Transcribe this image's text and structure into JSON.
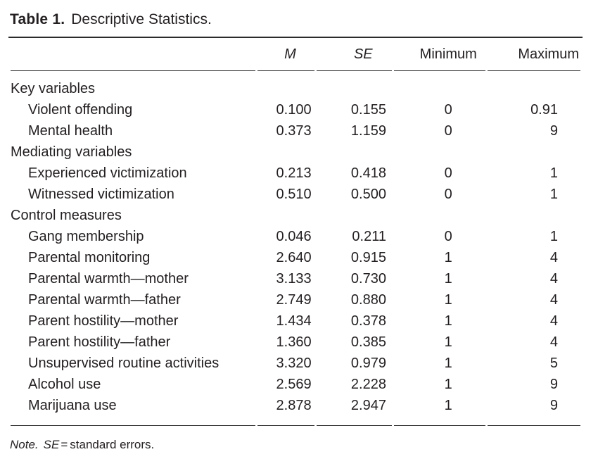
{
  "title": {
    "label": "Table 1.",
    "caption": "Descriptive Statistics."
  },
  "table": {
    "columns": {
      "m": "M",
      "se": "SE",
      "min": "Minimum",
      "max": "Maximum"
    },
    "rows": [
      {
        "type": "section",
        "label": "Key variables"
      },
      {
        "type": "item",
        "label": "Violent offending",
        "m": "0.100",
        "se": "0.155",
        "min": "0",
        "max": "0.91"
      },
      {
        "type": "item",
        "label": "Mental health",
        "m": "0.373",
        "se": "1.159",
        "min": "0",
        "max": "9"
      },
      {
        "type": "section",
        "label": "Mediating variables"
      },
      {
        "type": "item",
        "label": "Experienced victimization",
        "m": "0.213",
        "se": "0.418",
        "min": "0",
        "max": "1"
      },
      {
        "type": "item",
        "label": "Witnessed victimization",
        "m": "0.510",
        "se": "0.500",
        "min": "0",
        "max": "1"
      },
      {
        "type": "section",
        "label": "Control measures"
      },
      {
        "type": "item",
        "label": "Gang membership",
        "m": "0.046",
        "se": "0.211",
        "min": "0",
        "max": "1"
      },
      {
        "type": "item",
        "label": "Parental monitoring",
        "m": "2.640",
        "se": "0.915",
        "min": "1",
        "max": "4"
      },
      {
        "type": "item",
        "label": "Parental warmth—mother",
        "m": "3.133",
        "se": "0.730",
        "min": "1",
        "max": "4"
      },
      {
        "type": "item",
        "label": "Parental warmth—father",
        "m": "2.749",
        "se": "0.880",
        "min": "1",
        "max": "4"
      },
      {
        "type": "item",
        "label": "Parent hostility—mother",
        "m": "1.434",
        "se": "0.378",
        "min": "1",
        "max": "4"
      },
      {
        "type": "item",
        "label": "Parent hostility—father",
        "m": "1.360",
        "se": "0.385",
        "min": "1",
        "max": "4"
      },
      {
        "type": "item",
        "label": "Unsupervised routine activities",
        "m": "3.320",
        "se": "0.979",
        "min": "1",
        "max": "5"
      },
      {
        "type": "item",
        "label": "Alcohol use",
        "m": "2.569",
        "se": "2.228",
        "min": "1",
        "max": "9"
      },
      {
        "type": "item",
        "label": "Marijuana use",
        "m": "2.878",
        "se": "2.947",
        "min": "1",
        "max": "9"
      }
    ]
  },
  "note": {
    "prefix": "Note.",
    "se_term": "SE",
    "equals": "=",
    "definition": "standard errors."
  }
}
